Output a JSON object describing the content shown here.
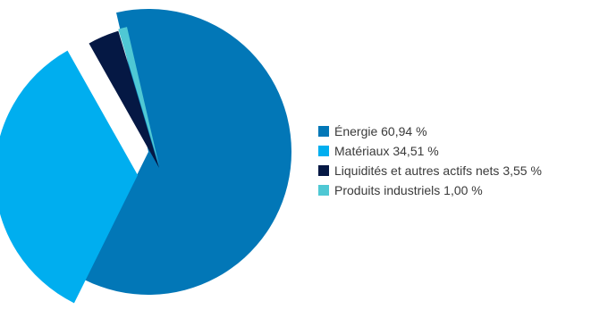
{
  "chart_data": {
    "type": "pie",
    "title": "",
    "legend_position": "right",
    "slices": [
      {
        "label": "Énergie 60,94 %",
        "value": 60.94,
        "color": "#0277b7",
        "exploded": false
      },
      {
        "label": "Matériaux 34,51 %",
        "value": 34.51,
        "color": "#00aeef",
        "exploded": true
      },
      {
        "label": "Liquidités et autres actifs nets 3,55 %",
        "value": 3.55,
        "color": "#051844",
        "exploded": true
      },
      {
        "label": "Produits industriels 1,00 %",
        "value": 1.0,
        "color": "#4fc8d4",
        "exploded": true
      }
    ]
  }
}
